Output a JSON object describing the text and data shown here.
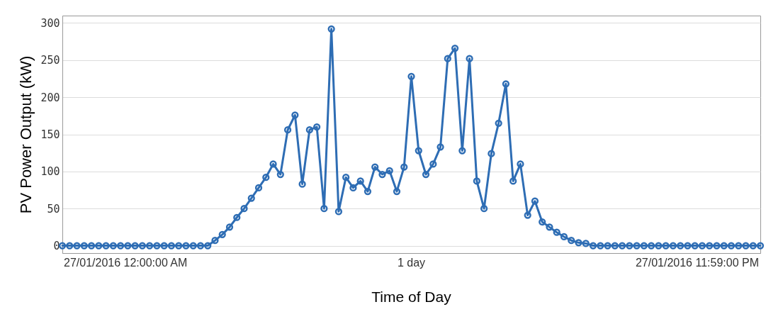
{
  "chart_data": {
    "type": "line",
    "xlabel": "Time of Day",
    "ylabel": "PV Power Output (kW)",
    "annotations": [
      "27/01/2016 12:00:00 AM",
      "1 day",
      "27/01/2016 11:59:00 PM"
    ],
    "categories": [
      null,
      null,
      null,
      null,
      null,
      null,
      null,
      null,
      null,
      null,
      null,
      null,
      null,
      null,
      null,
      null,
      null,
      null,
      null,
      null,
      null,
      null,
      null,
      null,
      null,
      null,
      null,
      null,
      null,
      null,
      null,
      null,
      null,
      null,
      null,
      null,
      null,
      null,
      null,
      null,
      null,
      null,
      null,
      null,
      null,
      null,
      null,
      null,
      null,
      null,
      null,
      null,
      null,
      null,
      null,
      null,
      null,
      null,
      null,
      null,
      null,
      null,
      null,
      null,
      null,
      null,
      null,
      null,
      null,
      null,
      null,
      null,
      null,
      null,
      null,
      null,
      null,
      null,
      null,
      null,
      null,
      null,
      null,
      null,
      null,
      null,
      null,
      null,
      null,
      null,
      null,
      null,
      null,
      null,
      null,
      null,
      null
    ],
    "ylim": [
      -10,
      310
    ],
    "yticks": [
      0,
      50,
      100,
      150,
      200,
      250,
      300
    ],
    "grid": "y",
    "marker": "circle",
    "line_style": "solid",
    "series": [
      {
        "color": "#2e6db4",
        "values": [
          0,
          0,
          0,
          0,
          0,
          0,
          0,
          0,
          0,
          0,
          0,
          0,
          0,
          0,
          0,
          0,
          0,
          0,
          0,
          0,
          0,
          7,
          15,
          25,
          38,
          50,
          64,
          78,
          92,
          110,
          96,
          156,
          176,
          83,
          156,
          160,
          50,
          292,
          46,
          92,
          78,
          87,
          73,
          106,
          96,
          101,
          73,
          106,
          228,
          128,
          96,
          110,
          133,
          252,
          266,
          128,
          252,
          87,
          50,
          124,
          165,
          218,
          87,
          110,
          41,
          60,
          32,
          25,
          18,
          12,
          7,
          4,
          3,
          0,
          0,
          0,
          0,
          0,
          0,
          0,
          0,
          0,
          0,
          0,
          0,
          0,
          0,
          0,
          0,
          0,
          0,
          0,
          0,
          0,
          0,
          0,
          0
        ]
      }
    ]
  }
}
